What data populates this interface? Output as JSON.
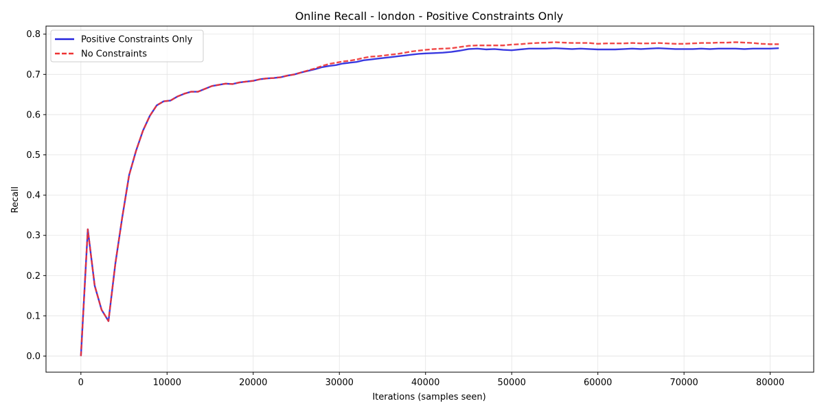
{
  "chart_data": {
    "type": "line",
    "title": "Online Recall - london - Positive Constraints Only",
    "xlabel": "Iterations (samples seen)",
    "ylabel": "Recall",
    "xlim": [
      -4050,
      85050
    ],
    "ylim": [
      -0.04,
      0.82
    ],
    "xticks": [
      0,
      10000,
      20000,
      30000,
      40000,
      50000,
      60000,
      70000,
      80000
    ],
    "xtick_labels": [
      "0",
      "10000",
      "20000",
      "30000",
      "40000",
      "50000",
      "60000",
      "70000",
      "80000"
    ],
    "yticks": [
      0.0,
      0.1,
      0.2,
      0.3,
      0.4,
      0.5,
      0.6,
      0.7,
      0.8
    ],
    "ytick_labels": [
      "0.0",
      "0.1",
      "0.2",
      "0.3",
      "0.4",
      "0.5",
      "0.6",
      "0.7",
      "0.8"
    ],
    "grid": true,
    "legend_position": "upper-left",
    "series": [
      {
        "name": "Positive Constraints Only",
        "color": "#2222dd",
        "style": "solid",
        "points": [
          [
            0,
            0.0
          ],
          [
            800,
            0.315
          ],
          [
            1600,
            0.175
          ],
          [
            2400,
            0.115
          ],
          [
            3200,
            0.087
          ],
          [
            4000,
            0.23
          ],
          [
            4800,
            0.345
          ],
          [
            5600,
            0.45
          ],
          [
            6400,
            0.51
          ],
          [
            7200,
            0.56
          ],
          [
            8000,
            0.597
          ],
          [
            8800,
            0.623
          ],
          [
            9600,
            0.633
          ],
          [
            10400,
            0.635
          ],
          [
            11200,
            0.645
          ],
          [
            12000,
            0.652
          ],
          [
            12800,
            0.657
          ],
          [
            13600,
            0.657
          ],
          [
            14400,
            0.664
          ],
          [
            15200,
            0.671
          ],
          [
            16000,
            0.674
          ],
          [
            16800,
            0.677
          ],
          [
            17600,
            0.676
          ],
          [
            18400,
            0.68
          ],
          [
            19200,
            0.682
          ],
          [
            20000,
            0.684
          ],
          [
            20800,
            0.688
          ],
          [
            21600,
            0.69
          ],
          [
            22400,
            0.691
          ],
          [
            23200,
            0.693
          ],
          [
            24000,
            0.697
          ],
          [
            24800,
            0.7
          ],
          [
            25600,
            0.705
          ],
          [
            26400,
            0.709
          ],
          [
            27200,
            0.713
          ],
          [
            28000,
            0.718
          ],
          [
            28800,
            0.721
          ],
          [
            29600,
            0.723
          ],
          [
            30400,
            0.727
          ],
          [
            31200,
            0.729
          ],
          [
            32000,
            0.731
          ],
          [
            32800,
            0.735
          ],
          [
            33600,
            0.737
          ],
          [
            34400,
            0.739
          ],
          [
            35200,
            0.741
          ],
          [
            36000,
            0.743
          ],
          [
            36800,
            0.745
          ],
          [
            37600,
            0.747
          ],
          [
            38400,
            0.749
          ],
          [
            39200,
            0.751
          ],
          [
            40000,
            0.752
          ],
          [
            41000,
            0.753
          ],
          [
            42000,
            0.754
          ],
          [
            43000,
            0.756
          ],
          [
            44000,
            0.759
          ],
          [
            45000,
            0.763
          ],
          [
            46000,
            0.764
          ],
          [
            47000,
            0.762
          ],
          [
            48000,
            0.763
          ],
          [
            49000,
            0.761
          ],
          [
            50000,
            0.76
          ],
          [
            51000,
            0.762
          ],
          [
            52000,
            0.764
          ],
          [
            53000,
            0.764
          ],
          [
            54000,
            0.764
          ],
          [
            55000,
            0.765
          ],
          [
            56000,
            0.764
          ],
          [
            57000,
            0.763
          ],
          [
            58000,
            0.764
          ],
          [
            59000,
            0.763
          ],
          [
            60000,
            0.762
          ],
          [
            61000,
            0.762
          ],
          [
            62000,
            0.762
          ],
          [
            63000,
            0.763
          ],
          [
            64000,
            0.764
          ],
          [
            65000,
            0.763
          ],
          [
            66000,
            0.764
          ],
          [
            67000,
            0.765
          ],
          [
            68000,
            0.764
          ],
          [
            69000,
            0.763
          ],
          [
            70000,
            0.763
          ],
          [
            71000,
            0.763
          ],
          [
            72000,
            0.764
          ],
          [
            73000,
            0.763
          ],
          [
            74000,
            0.764
          ],
          [
            75000,
            0.764
          ],
          [
            76000,
            0.764
          ],
          [
            77000,
            0.763
          ],
          [
            78000,
            0.764
          ],
          [
            79000,
            0.764
          ],
          [
            80000,
            0.764
          ],
          [
            81000,
            0.765
          ]
        ]
      },
      {
        "name": "No Constraints",
        "color": "#ee3333",
        "style": "dashed",
        "points": [
          [
            0,
            0.0
          ],
          [
            800,
            0.315
          ],
          [
            1600,
            0.175
          ],
          [
            2400,
            0.115
          ],
          [
            3200,
            0.087
          ],
          [
            4000,
            0.23
          ],
          [
            4800,
            0.345
          ],
          [
            5600,
            0.45
          ],
          [
            6400,
            0.51
          ],
          [
            7200,
            0.56
          ],
          [
            8000,
            0.597
          ],
          [
            8800,
            0.623
          ],
          [
            9600,
            0.633
          ],
          [
            10400,
            0.635
          ],
          [
            11200,
            0.645
          ],
          [
            12000,
            0.652
          ],
          [
            12800,
            0.657
          ],
          [
            13600,
            0.657
          ],
          [
            14400,
            0.664
          ],
          [
            15200,
            0.671
          ],
          [
            16000,
            0.674
          ],
          [
            16800,
            0.677
          ],
          [
            17600,
            0.676
          ],
          [
            18400,
            0.68
          ],
          [
            19200,
            0.682
          ],
          [
            20000,
            0.684
          ],
          [
            20800,
            0.688
          ],
          [
            21600,
            0.69
          ],
          [
            22400,
            0.691
          ],
          [
            23200,
            0.693
          ],
          [
            24000,
            0.697
          ],
          [
            24800,
            0.7
          ],
          [
            25600,
            0.705
          ],
          [
            26400,
            0.71
          ],
          [
            27200,
            0.715
          ],
          [
            28000,
            0.721
          ],
          [
            28800,
            0.726
          ],
          [
            29600,
            0.729
          ],
          [
            30400,
            0.732
          ],
          [
            31200,
            0.734
          ],
          [
            32000,
            0.737
          ],
          [
            32800,
            0.741
          ],
          [
            33600,
            0.744
          ],
          [
            34400,
            0.745
          ],
          [
            35200,
            0.747
          ],
          [
            36000,
            0.749
          ],
          [
            36800,
            0.751
          ],
          [
            37600,
            0.754
          ],
          [
            38400,
            0.757
          ],
          [
            39200,
            0.759
          ],
          [
            40000,
            0.761
          ],
          [
            41000,
            0.763
          ],
          [
            42000,
            0.764
          ],
          [
            43000,
            0.765
          ],
          [
            44000,
            0.768
          ],
          [
            45000,
            0.771
          ],
          [
            46000,
            0.772
          ],
          [
            47000,
            0.772
          ],
          [
            48000,
            0.772
          ],
          [
            49000,
            0.772
          ],
          [
            50000,
            0.774
          ],
          [
            51000,
            0.775
          ],
          [
            52000,
            0.777
          ],
          [
            53000,
            0.778
          ],
          [
            54000,
            0.779
          ],
          [
            55000,
            0.78
          ],
          [
            56000,
            0.779
          ],
          [
            57000,
            0.778
          ],
          [
            58000,
            0.778
          ],
          [
            59000,
            0.778
          ],
          [
            60000,
            0.776
          ],
          [
            61000,
            0.777
          ],
          [
            62000,
            0.777
          ],
          [
            63000,
            0.777
          ],
          [
            64000,
            0.778
          ],
          [
            65000,
            0.777
          ],
          [
            66000,
            0.777
          ],
          [
            67000,
            0.778
          ],
          [
            68000,
            0.777
          ],
          [
            69000,
            0.776
          ],
          [
            70000,
            0.776
          ],
          [
            71000,
            0.777
          ],
          [
            72000,
            0.778
          ],
          [
            73000,
            0.778
          ],
          [
            74000,
            0.779
          ],
          [
            75000,
            0.779
          ],
          [
            76000,
            0.78
          ],
          [
            77000,
            0.779
          ],
          [
            78000,
            0.778
          ],
          [
            79000,
            0.776
          ],
          [
            80000,
            0.775
          ],
          [
            81000,
            0.775
          ]
        ]
      }
    ]
  }
}
